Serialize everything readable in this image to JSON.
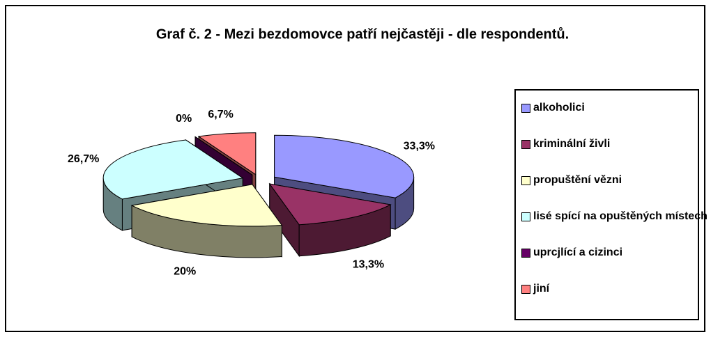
{
  "chart_data": {
    "type": "pie",
    "title": "Graf č. 2 - Mezi bezdomovce patří nejčastěji - dle respondentů.",
    "categories": [
      "alkoholici",
      "kriminální živli",
      "propuštění vězni",
      "lisé spící na opuštěných místech",
      "uprcjlící a cizinci",
      "jiní"
    ],
    "values": [
      33.3,
      13.3,
      20,
      26.7,
      0,
      6.7
    ],
    "value_labels": [
      "33,3%",
      "13,3%",
      "20%",
      "26,7%",
      "0%",
      "6,7%"
    ],
    "colors": [
      "#9999ff",
      "#993366",
      "#ffffcc",
      "#ccffff",
      "#660066",
      "#ff8080"
    ],
    "legend": "right"
  }
}
